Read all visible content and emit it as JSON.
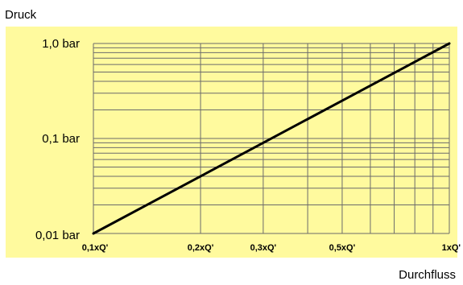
{
  "chart_data": {
    "type": "line",
    "ylabel": "Druck",
    "xlabel": "Durchfluss",
    "x_scale": "log",
    "y_scale": "log",
    "xlim": [
      0.1,
      1.0
    ],
    "ylim": [
      0.01,
      1.0
    ],
    "grid": true,
    "x_ticks": [
      {
        "value": 0.1,
        "label": "0,1xQ'"
      },
      {
        "value": 0.2,
        "label": "0,2xQ'"
      },
      {
        "value": 0.3,
        "label": "0,3xQ'"
      },
      {
        "value": 0.5,
        "label": "0,5xQ'"
      },
      {
        "value": 1.0,
        "label": "1xQ'"
      }
    ],
    "y_ticks": [
      {
        "value": 0.01,
        "label": "0,01 bar"
      },
      {
        "value": 0.1,
        "label": "0,1 bar"
      },
      {
        "value": 1.0,
        "label": "1,0 bar"
      }
    ],
    "series": [
      {
        "x": [
          0.1,
          1.0
        ],
        "y": [
          0.01,
          1.0
        ]
      }
    ],
    "colors": {
      "plot_background": "#fffa9e",
      "grid": "#6b6b6b",
      "line": "#000000"
    }
  }
}
